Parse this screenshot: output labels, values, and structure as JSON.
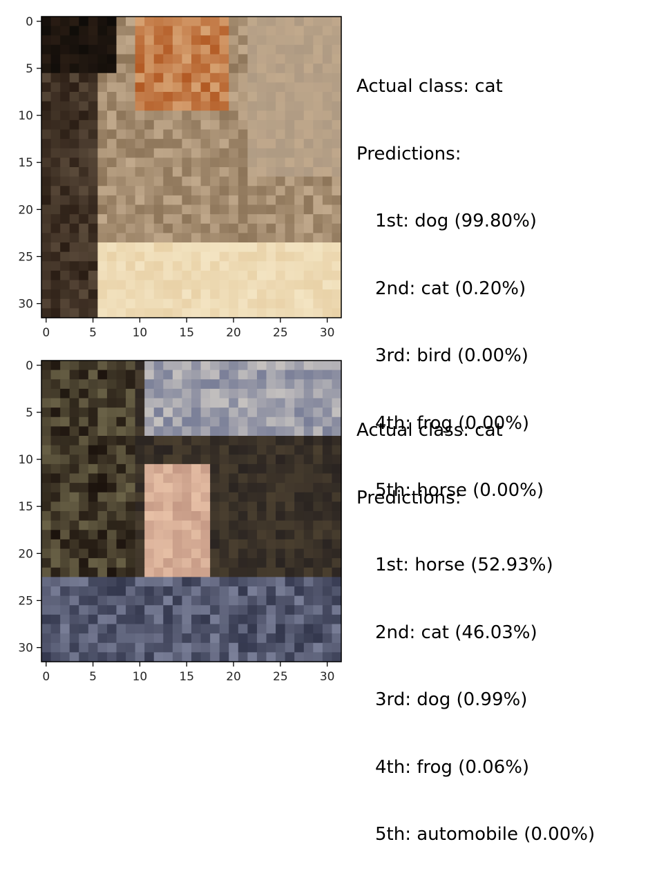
{
  "figure": {
    "panels": [
      {
        "actual_label": "Actual class: cat",
        "predictions_heading": "Predictions:",
        "predictions": [
          "1st: dog (99.80%)",
          "2nd: cat (0.20%)",
          "3rd: bird (0.00%)",
          "4th: frog (0.00%)",
          "5th: horse (0.00%)"
        ],
        "x_ticks": [
          "0",
          "5",
          "10",
          "15",
          "20",
          "25",
          "30"
        ],
        "y_ticks": [
          "0",
          "5",
          "10",
          "15",
          "20",
          "25",
          "30"
        ],
        "palette": [
          "#0e0b08",
          "#2a1d14",
          "#b25a24",
          "#d7a272",
          "#8d7559",
          "#c1a98c",
          "#e9d2a8",
          "#5a4a3a",
          "#f3e4c2",
          "#9b8b7a"
        ]
      },
      {
        "actual_label": "Actual class: cat",
        "predictions_heading": "Predictions:",
        "predictions": [
          "1st: horse (52.93%)",
          "2nd: cat (46.03%)",
          "3rd: dog (0.99%)",
          "4th: frog (0.06%)",
          "5th: automobile (0.00%)"
        ],
        "x_ticks": [
          "0",
          "5",
          "10",
          "15",
          "20",
          "25",
          "30"
        ],
        "y_ticks": [
          "0",
          "5",
          "10",
          "15",
          "20",
          "25",
          "30"
        ],
        "palette": [
          "#1c130d",
          "#3b3125",
          "#6a6247",
          "#c69a86",
          "#e7c0a6",
          "#34384e",
          "#7a7f98",
          "#d8d2c9",
          "#4a3f2f",
          "#2a2421"
        ]
      }
    ]
  }
}
